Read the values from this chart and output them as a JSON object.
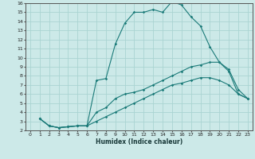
{
  "title": "",
  "xlabel": "Humidex (Indice chaleur)",
  "ylabel": "",
  "bg_color": "#cce9e8",
  "line_color": "#1a7a78",
  "grid_color": "#aad4d2",
  "xlim": [
    -0.5,
    23.5
  ],
  "ylim": [
    2,
    16
  ],
  "xticks": [
    0,
    1,
    2,
    3,
    4,
    5,
    6,
    7,
    8,
    9,
    10,
    11,
    12,
    13,
    14,
    15,
    16,
    17,
    18,
    19,
    20,
    21,
    22,
    23
  ],
  "yticks": [
    2,
    3,
    4,
    5,
    6,
    7,
    8,
    9,
    10,
    11,
    12,
    13,
    14,
    15,
    16
  ],
  "lines": [
    {
      "x": [
        1,
        2,
        3,
        4,
        5,
        6,
        7,
        8,
        9,
        10,
        11,
        12,
        13,
        14,
        15,
        16,
        17,
        18,
        19,
        20,
        21,
        22,
        23
      ],
      "y": [
        3.3,
        2.5,
        2.3,
        2.4,
        2.5,
        2.5,
        7.5,
        7.7,
        11.5,
        13.8,
        15.0,
        15.0,
        15.3,
        15.0,
        16.2,
        15.8,
        14.5,
        13.5,
        11.2,
        9.5,
        8.5,
        6.0,
        5.5
      ]
    },
    {
      "x": [
        1,
        2,
        3,
        4,
        5,
        6,
        7,
        8,
        9,
        10,
        11,
        12,
        13,
        14,
        15,
        16,
        17,
        18,
        19,
        20,
        21,
        22,
        23
      ],
      "y": [
        3.3,
        2.5,
        2.3,
        2.4,
        2.5,
        2.5,
        4.0,
        4.5,
        5.5,
        6.0,
        6.2,
        6.5,
        7.0,
        7.5,
        8.0,
        8.5,
        9.0,
        9.2,
        9.5,
        9.5,
        8.7,
        6.5,
        5.5
      ]
    },
    {
      "x": [
        1,
        2,
        3,
        4,
        5,
        6,
        7,
        8,
        9,
        10,
        11,
        12,
        13,
        14,
        15,
        16,
        17,
        18,
        19,
        20,
        21,
        22,
        23
      ],
      "y": [
        3.3,
        2.5,
        2.3,
        2.4,
        2.5,
        2.5,
        3.0,
        3.5,
        4.0,
        4.5,
        5.0,
        5.5,
        6.0,
        6.5,
        7.0,
        7.2,
        7.5,
        7.8,
        7.8,
        7.5,
        7.0,
        6.0,
        5.5
      ]
    }
  ]
}
